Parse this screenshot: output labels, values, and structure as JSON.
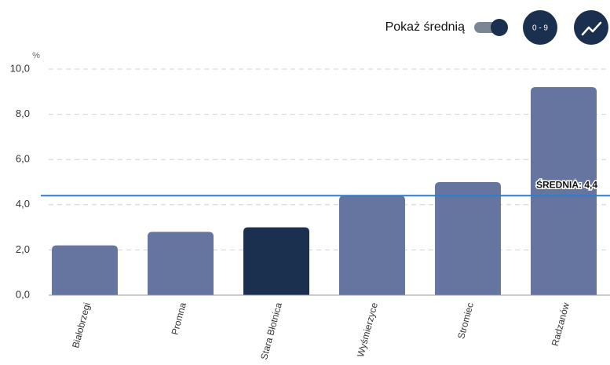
{
  "chart_data": {
    "type": "bar",
    "controls": {
      "toggle_label": "Pokaż średnią",
      "range_button": "0 - 9"
    },
    "y_unit": "%",
    "categories": [
      "Białobrzegi",
      "Promna",
      "Stara Błotnica",
      "Wyśmierzyce",
      "Stromiec",
      "Radzanów"
    ],
    "values": [
      2.2,
      2.8,
      3.0,
      4.4,
      5.0,
      9.2
    ],
    "colors": [
      "#6674a0",
      "#6674a0",
      "#1b2f4f",
      "#6674a0",
      "#6674a0",
      "#6674a0"
    ],
    "average": 4.4,
    "average_label": "ŚREDNIA: 4,4",
    "average_color": "#2a7ed2",
    "ylim": [
      0,
      10
    ],
    "yticks": [
      {
        "value": 0,
        "label": "0,0"
      },
      {
        "value": 2,
        "label": "2,0"
      },
      {
        "value": 4,
        "label": "4,0"
      },
      {
        "value": 6,
        "label": "6,0"
      },
      {
        "value": 8,
        "label": "8,0"
      },
      {
        "value": 10,
        "label": "10,0"
      }
    ],
    "grid": true
  }
}
